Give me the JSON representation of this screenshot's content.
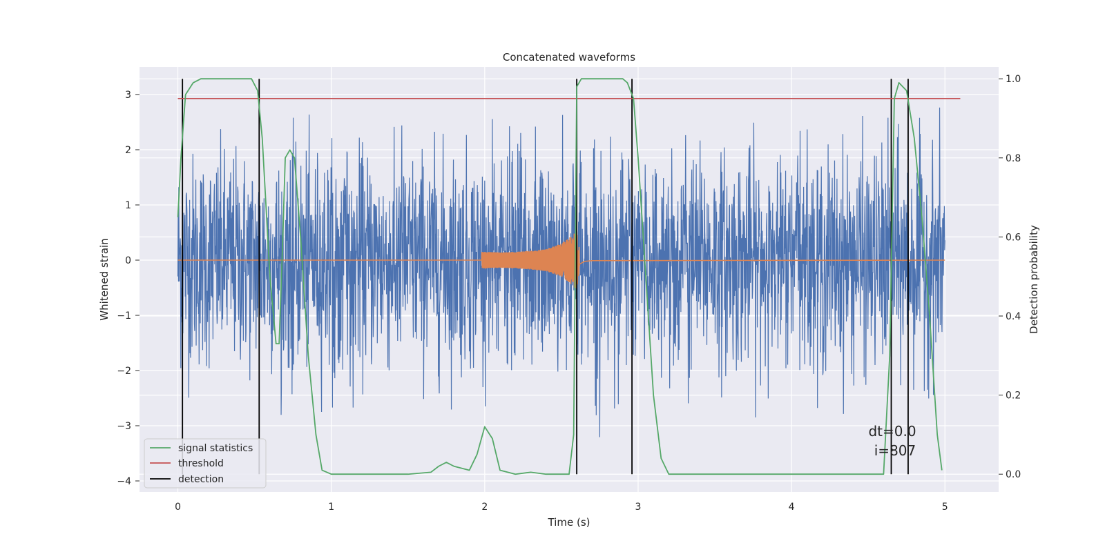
{
  "chart_data": {
    "type": "line",
    "title": "Concatenated waveforms",
    "xlabel": "Time (s)",
    "ylabel_left": "Whitened strain",
    "ylabel_right": "Detection probability",
    "xlim": [
      -0.25,
      5.35
    ],
    "ylim_left": [
      -4.2,
      3.5
    ],
    "ylim_right": [
      -0.045,
      1.03
    ],
    "x_ticks": [
      0,
      1,
      2,
      3,
      4,
      5
    ],
    "y_left_ticks": [
      -4,
      -3,
      -2,
      -1,
      0,
      1,
      2,
      3
    ],
    "y_right_ticks": [
      0.0,
      0.2,
      0.4,
      0.6,
      0.8,
      1.0
    ],
    "x_tick_labels": [
      "0",
      "1",
      "2",
      "3",
      "4",
      "5"
    ],
    "y_left_tick_labels": [
      "−4",
      "−3",
      "−2",
      "−1",
      "0",
      "1",
      "2",
      "3"
    ],
    "y_right_tick_labels": [
      "0.0",
      "0.2",
      "0.4",
      "0.6",
      "0.8",
      "1.0"
    ],
    "grid": true,
    "legend_position": "lower-left",
    "legend": [
      {
        "label": "signal statistics",
        "color": "#55a868"
      },
      {
        "label": "threshold",
        "color": "#c44e52"
      },
      {
        "label": "detection",
        "color": "#000000"
      }
    ],
    "colors": {
      "strain": "#4c72b0",
      "injected_signal": "#dd8452",
      "signal_statistics": "#55a868",
      "threshold": "#c44e52",
      "detection": "#000000",
      "axes_background": "#eaeaf2",
      "grid": "#ffffff"
    },
    "series": [
      {
        "role": "strain",
        "axis": "left",
        "x_range": [
          0,
          5
        ],
        "envelope": {
          "x": [
            0,
            0.5,
            1,
            1.5,
            2,
            2.5,
            3,
            3.5,
            4,
            4.5,
            5
          ],
          "min": [
            -3.2,
            -3.0,
            -3.1,
            -2.8,
            -2.9,
            -3.8,
            -2.9,
            -3.0,
            -2.8,
            -3.2,
            -2.5
          ],
          "max": [
            3.1,
            3.0,
            3.0,
            2.7,
            2.9,
            3.0,
            3.0,
            2.9,
            3.0,
            3.2,
            2.9
          ]
        }
      },
      {
        "role": "injected_signal",
        "axis": "left",
        "x": [
          1.98,
          2.1,
          2.2,
          2.3,
          2.4,
          2.5,
          2.55,
          2.6,
          2.62,
          2.65,
          2.7
        ],
        "amplitude": [
          0.15,
          0.14,
          0.15,
          0.17,
          0.2,
          0.3,
          0.4,
          0.55,
          0.15,
          0.05,
          0.02
        ]
      },
      {
        "name": "signal statistics",
        "axis": "right",
        "x": [
          0.0,
          0.02,
          0.05,
          0.1,
          0.15,
          0.2,
          0.4,
          0.48,
          0.52,
          0.55,
          0.6,
          0.64,
          0.66,
          0.68,
          0.7,
          0.73,
          0.76,
          0.8,
          0.85,
          0.9,
          0.94,
          1.0,
          1.5,
          1.65,
          1.7,
          1.75,
          1.8,
          1.9,
          1.95,
          2.0,
          2.05,
          2.1,
          2.2,
          2.3,
          2.4,
          2.55,
          2.58,
          2.6,
          2.63,
          2.7,
          2.8,
          2.9,
          2.93,
          2.97,
          3.0,
          3.05,
          3.1,
          3.15,
          3.2,
          4.0,
          4.6,
          4.64,
          4.67,
          4.7,
          4.75,
          4.8,
          4.85,
          4.9,
          4.95,
          4.98
        ],
        "y": [
          0.65,
          0.8,
          0.96,
          0.99,
          1.0,
          1.0,
          1.0,
          1.0,
          0.97,
          0.85,
          0.5,
          0.33,
          0.33,
          0.55,
          0.8,
          0.82,
          0.8,
          0.6,
          0.3,
          0.1,
          0.01,
          0.0,
          0.0,
          0.005,
          0.02,
          0.03,
          0.02,
          0.01,
          0.05,
          0.12,
          0.09,
          0.01,
          0.0,
          0.005,
          0.0,
          0.0,
          0.1,
          0.98,
          1.0,
          1.0,
          1.0,
          1.0,
          0.99,
          0.95,
          0.8,
          0.5,
          0.2,
          0.04,
          0.0,
          0.0,
          0.0,
          0.3,
          0.95,
          0.99,
          0.97,
          0.85,
          0.65,
          0.4,
          0.1,
          0.01
        ]
      },
      {
        "name": "threshold",
        "axis": "right",
        "x": [
          0,
          5.1
        ],
        "y": [
          0.95,
          0.95
        ]
      }
    ],
    "detections": [
      0.03,
      0.53,
      2.6,
      2.96,
      4.65,
      4.76
    ],
    "annotations": [
      "dt=0.0",
      "i=807"
    ]
  }
}
